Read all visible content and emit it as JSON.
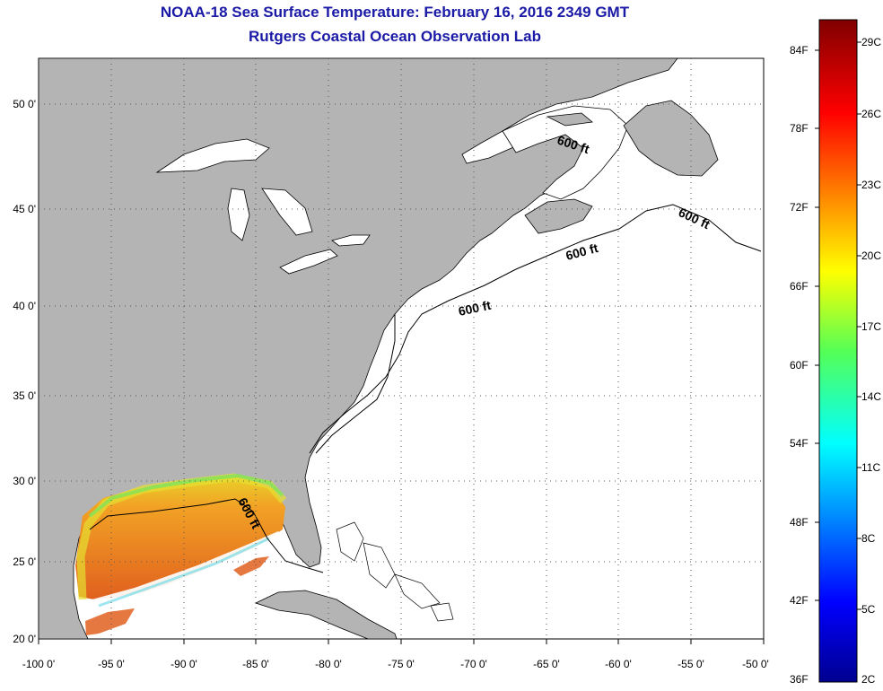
{
  "title": {
    "line1": "NOAA-18 Sea Surface Temperature:  February 16, 2016 2349 GMT",
    "line2": "Rutgers Coastal Ocean Observation Lab"
  },
  "map": {
    "lon_range": [
      -100,
      -50
    ],
    "lat_range": [
      20,
      52
    ],
    "lat_ticks": [
      "50 0'",
      "45 0'",
      "40 0'",
      "35 0'",
      "30 0'",
      "25 0'",
      "20 0'"
    ],
    "lon_ticks": [
      "-100 0'",
      "-95 0'",
      "-90 0'",
      "-85 0'",
      "-80 0'",
      "-75 0'",
      "-70 0'",
      "-65 0'",
      "-60 0'",
      "-55 0'",
      "-50 0'"
    ],
    "contour_labels": [
      "600 ft",
      "600 ft",
      "600 ft",
      "600 ft",
      "600 ft"
    ],
    "grid": "dotted",
    "colors": {
      "land": "#b4b4b4",
      "water": "#ffffff",
      "title": "#1a1aa6",
      "coastline": "#000000"
    }
  },
  "colorbar": {
    "fahrenheit_labels": [
      "84F",
      "78F",
      "72F",
      "66F",
      "60F",
      "54F",
      "48F",
      "42F",
      "36F"
    ],
    "celsius_labels": [
      "29C",
      "26C",
      "23C",
      "20C",
      "17C",
      "14C",
      "11C",
      "8C",
      "5C",
      "2C"
    ],
    "colormap": "jet",
    "range_c": [
      2,
      30
    ]
  }
}
